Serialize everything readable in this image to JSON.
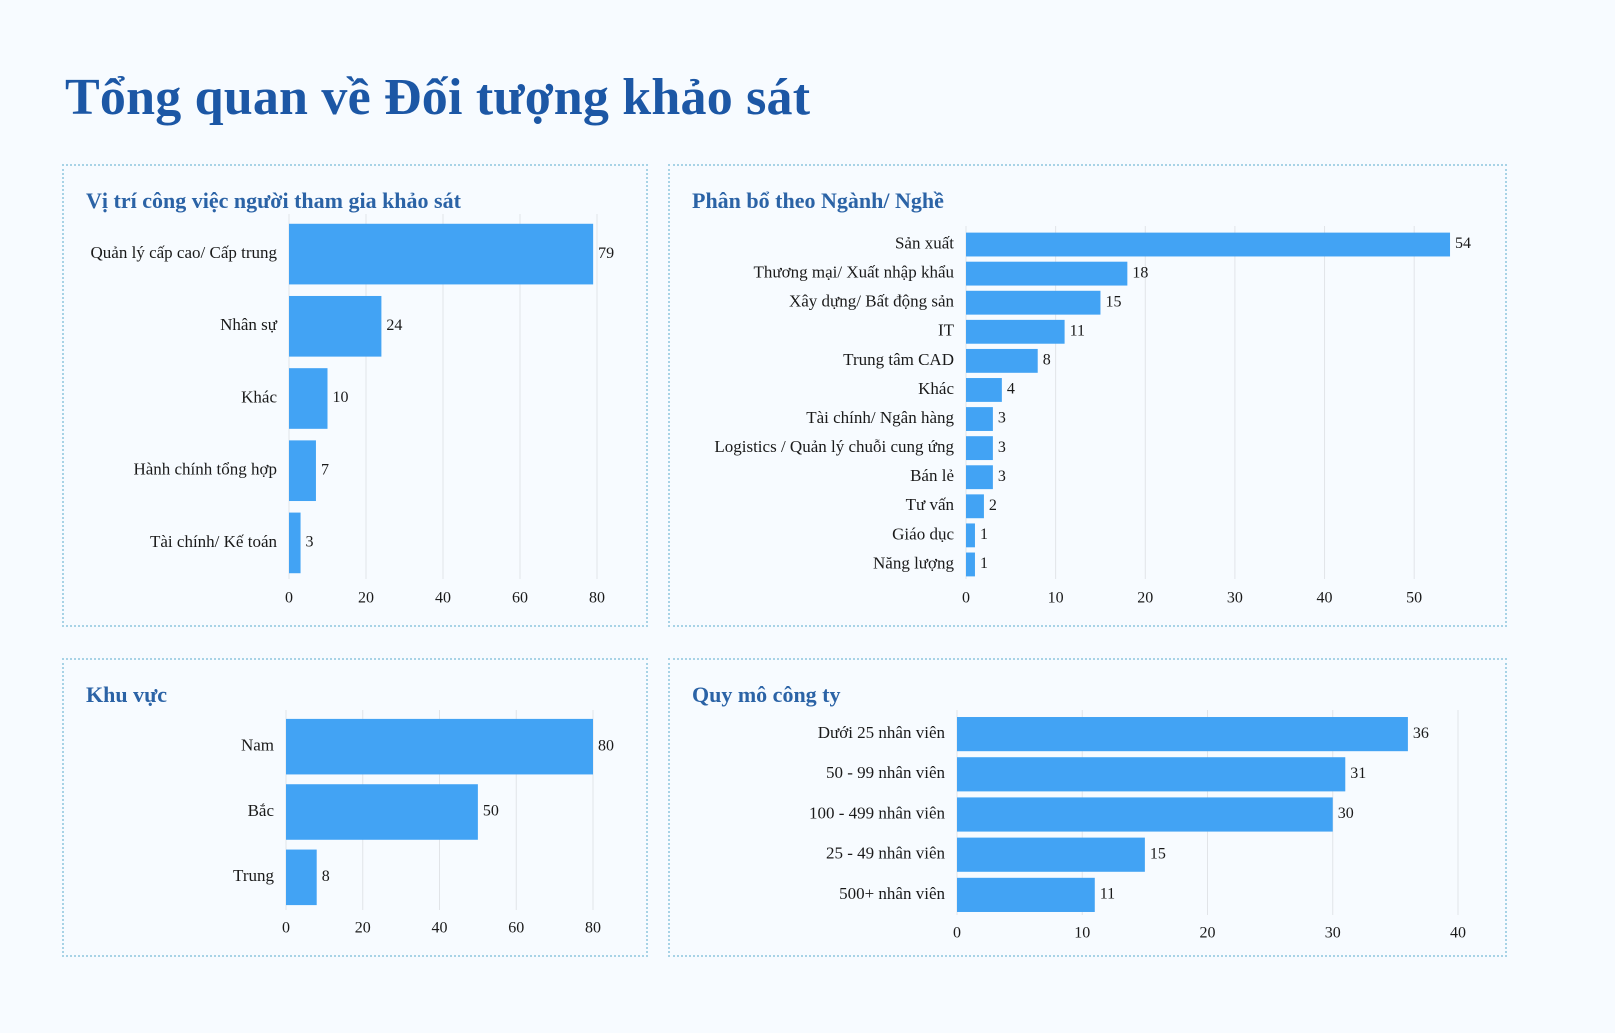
{
  "page_title": "Tổng quan về Đối tượng khảo sát",
  "colors": {
    "bar": "#42a3f4",
    "title": "#1c57a5",
    "panel_title": "#2b63a6",
    "panel_border": "#a8d3e6"
  },
  "chart_data": [
    {
      "id": "vi-tri",
      "type": "bar",
      "orientation": "horizontal",
      "title": "Vị trí công việc người tham gia khảo sát",
      "categories": [
        "Quản lý cấp cao/ Cấp trung",
        "Nhân sự",
        "Khác",
        "Hành chính tổng hợp",
        "Tài chính/ Kế toán"
      ],
      "values": [
        79,
        24,
        10,
        7,
        3
      ],
      "xlim": [
        0,
        80
      ],
      "xticks": [
        0,
        20,
        40,
        60,
        80
      ],
      "grid": true
    },
    {
      "id": "nganh-nghe",
      "type": "bar",
      "orientation": "horizontal",
      "title": "Phân bổ theo Ngành/ Nghề",
      "categories": [
        "Sản xuất",
        "Thương mại/ Xuất nhập khẩu",
        "Xây dựng/ Bất động sản",
        "IT",
        "Trung tâm CAD",
        "Khác",
        "Tài chính/ Ngân hàng",
        "Logistics / Quản lý chuỗi cung ứng",
        "Bán lẻ",
        "Tư vấn",
        "Giáo dục",
        "Năng lượng"
      ],
      "values": [
        54,
        18,
        15,
        11,
        8,
        4,
        3,
        3,
        3,
        2,
        1,
        1
      ],
      "xlim": [
        0,
        55
      ],
      "xticks": [
        0,
        10,
        20,
        30,
        40,
        50
      ],
      "grid": true
    },
    {
      "id": "khu-vuc",
      "type": "bar",
      "orientation": "horizontal",
      "title": "Khu vực",
      "categories": [
        "Nam",
        "Bắc",
        "Trung"
      ],
      "values": [
        80,
        50,
        8
      ],
      "xlim": [
        0,
        80
      ],
      "xticks": [
        0,
        20,
        40,
        60,
        80
      ],
      "grid": true
    },
    {
      "id": "quy-mo",
      "type": "bar",
      "orientation": "horizontal",
      "title": "Quy mô công ty",
      "categories": [
        "Dưới 25 nhân viên",
        "50 - 99 nhân viên",
        "100 - 499 nhân viên",
        "25 - 49 nhân viên",
        "500+ nhân viên"
      ],
      "values": [
        36,
        31,
        30,
        15,
        11
      ],
      "xlim": [
        0,
        40
      ],
      "xticks": [
        0,
        10,
        20,
        30,
        40
      ],
      "grid": true
    }
  ]
}
